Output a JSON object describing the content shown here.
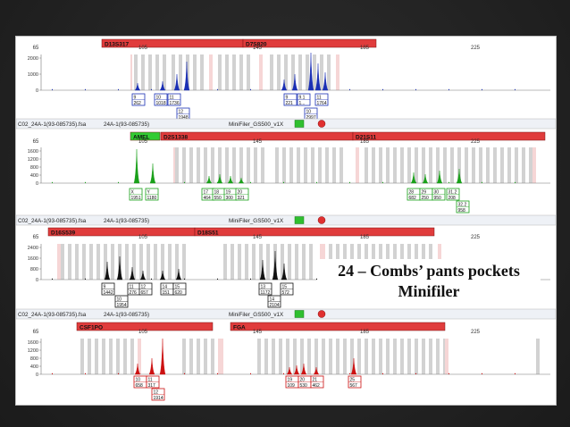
{
  "caption": {
    "line1": "24 – Combs’ pants pockets",
    "line2": "Minifiler"
  },
  "colors": {
    "marker_bar": "#e03c3c",
    "amel_bar": "#33cc33",
    "bin_gray": "#d2d2d2",
    "bin_pink": "#f6d6d6",
    "channels": [
      "#1a2fb4",
      "#19a019",
      "#111111",
      "#cc1111"
    ]
  },
  "panels": [
    {
      "name": "blue",
      "header_file": "",
      "header_sample": "",
      "header_kit": "",
      "axis_ticks": [
        "65",
        "105",
        "145",
        "185",
        "225"
      ],
      "y_ticks": [
        "2000",
        "1000",
        "0"
      ],
      "markers": [
        {
          "label": "D13S317"
        },
        {
          "label": "D7S820"
        }
      ],
      "allele_boxes": [
        {
          "allele": "9",
          "height": "262"
        },
        {
          "allele": "10",
          "height": "1018"
        },
        {
          "allele": "11",
          "height": "1736"
        },
        {
          "allele": "12",
          "height": "1948"
        },
        {
          "allele": "9",
          "height": "221"
        },
        {
          "allele": "9.1",
          "height": "1..."
        },
        {
          "allele": "10",
          "height": "2997"
        },
        {
          "allele": "11",
          "height": "1764"
        }
      ]
    },
    {
      "name": "green",
      "header_file": "C02_24A-1(93-085735).fsa",
      "header_sample": "24A-1(93-085735)",
      "header_kit": "MiniFiler_GS500_v1X",
      "axis_ticks": [
        "65",
        "105",
        "145",
        "185",
        "225"
      ],
      "y_ticks": [
        "1600",
        "1200",
        "800",
        "400",
        "0"
      ],
      "markers": [
        {
          "label": "AMEL"
        },
        {
          "label": "D2S1338"
        },
        {
          "label": "D21S11"
        }
      ],
      "allele_boxes": [
        {
          "allele": "X",
          "height": "1951"
        },
        {
          "allele": "Y",
          "height": "1180"
        },
        {
          "allele": "17",
          "height": "464"
        },
        {
          "allele": "18",
          "height": "550"
        },
        {
          "allele": "19",
          "height": "300"
        },
        {
          "allele": "20",
          "height": "321"
        },
        {
          "allele": "28",
          "height": "682"
        },
        {
          "allele": "29",
          "height": "250"
        },
        {
          "allele": "30",
          "height": "950"
        },
        {
          "allele": "31.2",
          "height": "208"
        },
        {
          "allele": "32.2",
          "height": "958"
        }
      ]
    },
    {
      "name": "black",
      "header_file": "C02_24A-1(93-085735).fsa",
      "header_sample": "24A-1(93-085735)",
      "header_kit": "MiniFiler_GS500_v1X",
      "axis_ticks": [
        "65",
        "105",
        "145",
        "185",
        "225"
      ],
      "y_ticks": [
        "2400",
        "1600",
        "800",
        "0"
      ],
      "markers": [
        {
          "label": "D16S539"
        },
        {
          "label": "D18S51"
        }
      ],
      "allele_boxes": [
        {
          "allele": "9",
          "height": "1442"
        },
        {
          "allele": "10",
          "height": "1954"
        },
        {
          "allele": "11",
          "height": "276"
        },
        {
          "allele": "12",
          "height": "657"
        },
        {
          "allele": "14",
          "height": "151"
        },
        {
          "allele": "15",
          "height": "620"
        },
        {
          "allele": "13",
          "height": "1172"
        },
        {
          "allele": "14",
          "height": "2104"
        },
        {
          "allele": "15",
          "height": "572"
        }
      ]
    },
    {
      "name": "red",
      "header_file": "C02_24A-1(93-085735).fsa",
      "header_sample": "24A-1(93-085735)",
      "header_kit": "MiniFiler_GS500_v1X",
      "axis_ticks": [
        "65",
        "105",
        "145",
        "185",
        "225"
      ],
      "y_ticks": [
        "1600",
        "1200",
        "800",
        "400",
        "0"
      ],
      "markers": [
        {
          "label": "CSF1PO"
        },
        {
          "label": "FGA"
        }
      ],
      "allele_boxes": [
        {
          "allele": "10",
          "height": "658"
        },
        {
          "allele": "11",
          "height": "317"
        },
        {
          "allele": "12",
          "height": "1914"
        },
        {
          "allele": "19",
          "height": "109"
        },
        {
          "allele": "20",
          "height": "530"
        },
        {
          "allele": "21",
          "height": "462"
        },
        {
          "allele": "25",
          "height": "567"
        }
      ]
    }
  ]
}
